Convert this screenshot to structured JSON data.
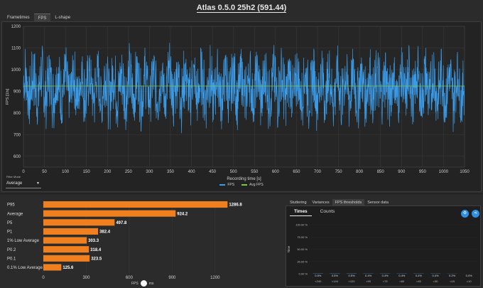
{
  "window": {
    "title": "Atlas 0.5.0 25h2 (591.44)"
  },
  "tabs": [
    {
      "label": "Frametimes"
    },
    {
      "label": "FPS"
    },
    {
      "label": "L-shape"
    }
  ],
  "filter": {
    "label": "Filter Mode",
    "value": "Average"
  },
  "legend": [
    {
      "label": "FPS",
      "color": "#3a9be8"
    },
    {
      "label": "Avg FPS",
      "color": "#7ac943"
    }
  ],
  "bottom_tabs": [
    {
      "label": "Stuttering"
    },
    {
      "label": "Variances"
    },
    {
      "label": "FPS thresholds"
    },
    {
      "label": "Sensor data"
    }
  ],
  "sub_tabs": [
    {
      "label": "Times"
    },
    {
      "label": "Counts"
    }
  ],
  "toggle": {
    "left": "FPS",
    "right": "ms"
  },
  "icons": {
    "settings": "settings-icon",
    "share": "share-icon"
  },
  "chart_data": [
    {
      "type": "line",
      "xlabel": "Recording time [s]",
      "ylabel": "FPS [1/s]",
      "xlim": [
        0,
        1050
      ],
      "ylim": [
        550,
        1200
      ],
      "xticks": [
        0,
        50,
        100,
        150,
        200,
        250,
        300,
        350,
        400,
        450,
        500,
        550,
        600,
        650,
        700,
        750,
        800,
        850,
        900,
        950,
        1000,
        1050
      ],
      "yticks": [
        600,
        700,
        800,
        900,
        1000,
        1100,
        1200
      ],
      "grid": true,
      "series": [
        {
          "name": "FPS",
          "color": "#3a9be8"
        },
        {
          "name": "Avg FPS",
          "color": "#7ac943",
          "values": [
            924.2
          ]
        }
      ]
    },
    {
      "type": "bar",
      "orientation": "horizontal",
      "categories": [
        "P95",
        "Average",
        "P5",
        "P1",
        "1% Low Average",
        "P0.2",
        "P0.1",
        "0.1% Low Average"
      ],
      "values": [
        1286.8,
        924.2,
        497.8,
        382.4,
        303.3,
        318.4,
        323.5,
        125.6
      ],
      "value_labels": [
        "1286.8",
        "924.2",
        "497.8",
        "382.4",
        "303.3",
        "318.4",
        "323.5",
        "125.6"
      ],
      "xlim": [
        0,
        1300
      ],
      "xticks": [
        0,
        300,
        600,
        900,
        1200
      ],
      "color": "#f07f1f"
    },
    {
      "type": "bar",
      "ylabel": "Time",
      "categories": [
        "<240",
        "<144",
        "<120",
        "<90",
        "<75",
        "<60",
        "<45",
        "<30",
        "<15",
        "<10"
      ],
      "values": [
        0.5,
        0.5,
        0.5,
        0.4,
        0.4,
        0.4,
        0.4,
        0.4,
        0.2,
        0.0
      ],
      "value_labels": [
        "0.5%",
        "0.5%",
        "0.5%",
        "0.4%",
        "0.4%",
        "0.4%",
        "0.4%",
        "0.4%",
        "0.2%",
        "0.0%"
      ],
      "yticks": [
        "100.00 %",
        "75.00 %",
        "50.00 %",
        "25.00 %",
        "0.00 %"
      ],
      "ylim": [
        0,
        100
      ]
    }
  ]
}
